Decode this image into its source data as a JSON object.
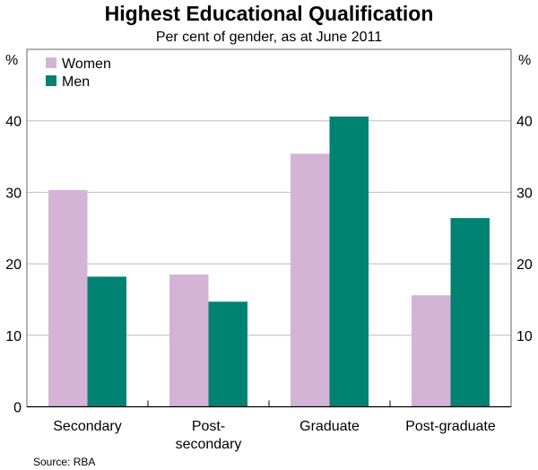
{
  "chart_data": {
    "type": "bar",
    "title": "Highest Educational Qualification",
    "subtitle": "Per cent of gender, as at June 2011",
    "categories": [
      "Secondary",
      "Post-\nsecondary",
      "Graduate",
      "Post-graduate"
    ],
    "series": [
      {
        "name": "Women",
        "color": "#d3b4d6",
        "values": [
          30.3,
          18.5,
          35.4,
          15.6
        ]
      },
      {
        "name": "Men",
        "color": "#008272",
        "values": [
          18.2,
          14.7,
          40.6,
          26.4
        ]
      }
    ],
    "ylabel_left": "%",
    "ylabel_right": "%",
    "ylim": [
      0,
      50
    ],
    "yticks_left": [
      0,
      10,
      20,
      30,
      40
    ],
    "yticks_right": [
      10,
      20,
      30,
      40
    ],
    "grid": true,
    "legend": "top-left",
    "source": "Source: RBA"
  }
}
